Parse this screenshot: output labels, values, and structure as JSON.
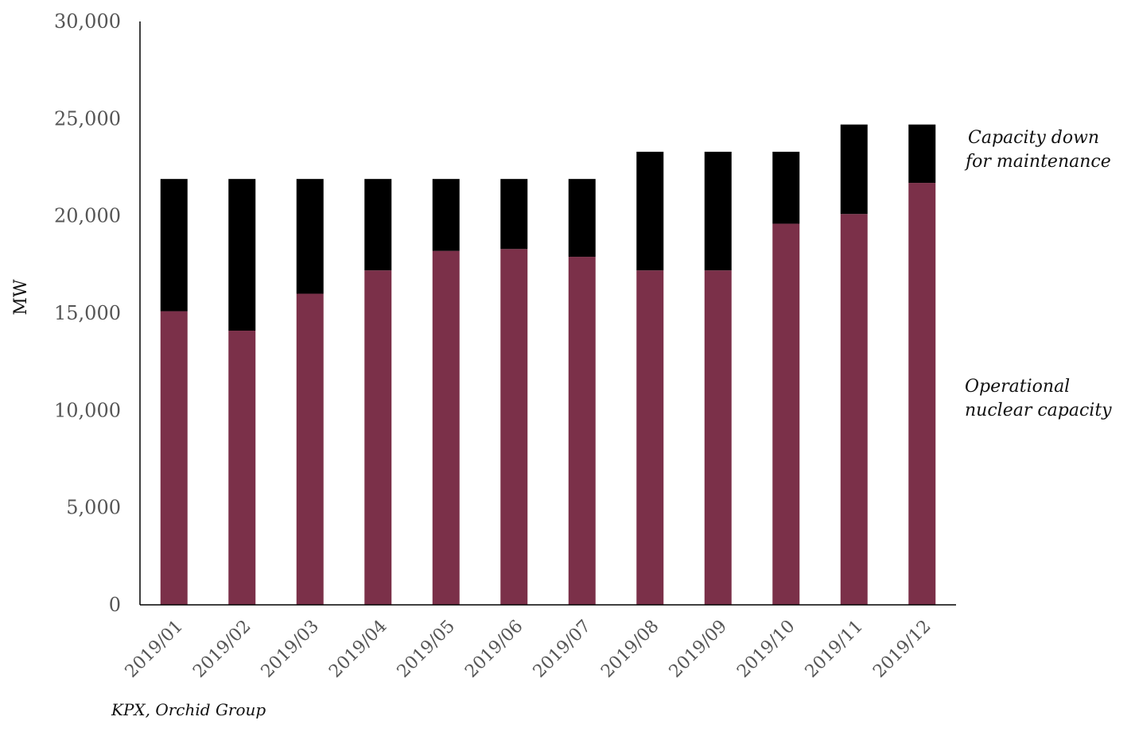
{
  "chart_data": {
    "type": "bar",
    "stacked": true,
    "categories": [
      "2019/01",
      "2019/02",
      "2019/03",
      "2019/04",
      "2019/05",
      "2019/06",
      "2019/07",
      "2019/08",
      "2019/09",
      "2019/10",
      "2019/11",
      "2019/12"
    ],
    "series": [
      {
        "name": "Operational nuclear capacity",
        "color": "#7b3049",
        "values": [
          15100,
          14100,
          16000,
          17200,
          18200,
          18300,
          17900,
          17200,
          17200,
          19600,
          20100,
          21700
        ]
      },
      {
        "name": "Capacity down for maintenance",
        "color": "#000000",
        "values": [
          6800,
          7800,
          5900,
          4700,
          3700,
          3600,
          4000,
          6100,
          6100,
          3700,
          4600,
          3000
        ]
      }
    ],
    "ylabel": "MW",
    "ylim": [
      0,
      30000
    ],
    "yticks": [
      0,
      5000,
      10000,
      15000,
      20000,
      25000,
      30000
    ],
    "ytick_labels": [
      "0",
      "5,000",
      "10,000",
      "15,000",
      "20,000",
      "25,000",
      "30,000"
    ],
    "legend_labels": {
      "maintenance": [
        "Capacity down",
        "for maintenance"
      ],
      "operational": [
        "Operational",
        "nuclear capacity"
      ]
    },
    "legend_position": "right",
    "grid": false,
    "source": "KPX, Orchid Group"
  }
}
